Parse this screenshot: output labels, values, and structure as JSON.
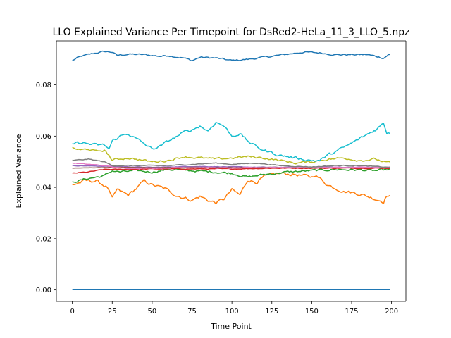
{
  "chart_data": {
    "type": "line",
    "title": "LLO Explained Variance Per Timepoint for DsRed2-HeLa_11_3_LLO_5.npz",
    "xlabel": "Time Point",
    "ylabel": "Explained Variance",
    "xlim": [
      -10,
      209
    ],
    "ylim": [
      -0.0045,
      0.0972
    ],
    "xticks": [
      0,
      25,
      50,
      75,
      100,
      125,
      150,
      175,
      200
    ],
    "yticks": [
      0.0,
      0.02,
      0.04,
      0.06,
      0.08
    ],
    "ytick_labels": [
      "0.00",
      "0.02",
      "0.04",
      "0.06",
      "0.08"
    ],
    "grid": false,
    "legend": "none",
    "n_points": 200,
    "series": [
      {
        "color": "#1f77b4",
        "keyframes": [
          [
            0,
            0.0895
          ],
          [
            3,
            0.0905
          ],
          [
            6,
            0.0912
          ],
          [
            10,
            0.0918
          ],
          [
            15,
            0.0925
          ],
          [
            20,
            0.093
          ],
          [
            25,
            0.0928
          ],
          [
            28,
            0.0915
          ],
          [
            35,
            0.092
          ],
          [
            45,
            0.0918
          ],
          [
            55,
            0.0912
          ],
          [
            60,
            0.0915
          ],
          [
            70,
            0.0905
          ],
          [
            75,
            0.0895
          ],
          [
            80,
            0.0908
          ],
          [
            90,
            0.0905
          ],
          [
            100,
            0.0895
          ],
          [
            110,
            0.09
          ],
          [
            125,
            0.0912
          ],
          [
            135,
            0.092
          ],
          [
            145,
            0.0928
          ],
          [
            155,
            0.0925
          ],
          [
            165,
            0.0918
          ],
          [
            175,
            0.0918
          ],
          [
            185,
            0.0918
          ],
          [
            190,
            0.0912
          ],
          [
            195,
            0.0905
          ],
          [
            198,
            0.0918
          ],
          [
            199,
            0.0918
          ]
        ],
        "noise": 0.0006
      },
      {
        "color": "#ff7f0e",
        "keyframes": [
          [
            0,
            0.041
          ],
          [
            8,
            0.0425
          ],
          [
            15,
            0.0425
          ],
          [
            22,
            0.04
          ],
          [
            25,
            0.0355
          ],
          [
            28,
            0.039
          ],
          [
            35,
            0.037
          ],
          [
            40,
            0.0395
          ],
          [
            45,
            0.0425
          ],
          [
            50,
            0.041
          ],
          [
            58,
            0.0395
          ],
          [
            65,
            0.037
          ],
          [
            75,
            0.035
          ],
          [
            80,
            0.0365
          ],
          [
            85,
            0.035
          ],
          [
            90,
            0.034
          ],
          [
            95,
            0.0355
          ],
          [
            100,
            0.039
          ],
          [
            105,
            0.037
          ],
          [
            110,
            0.043
          ],
          [
            115,
            0.042
          ],
          [
            120,
            0.044
          ],
          [
            130,
            0.0455
          ],
          [
            140,
            0.045
          ],
          [
            150,
            0.044
          ],
          [
            152,
            0.045
          ],
          [
            160,
            0.041
          ],
          [
            170,
            0.0385
          ],
          [
            180,
            0.0375
          ],
          [
            190,
            0.0355
          ],
          [
            195,
            0.0345
          ],
          [
            197,
            0.037
          ],
          [
            199,
            0.0365
          ]
        ],
        "noise": 0.0012
      },
      {
        "color": "#2ca02c",
        "keyframes": [
          [
            0,
            0.042
          ],
          [
            10,
            0.0435
          ],
          [
            20,
            0.0445
          ],
          [
            25,
            0.0465
          ],
          [
            30,
            0.046
          ],
          [
            40,
            0.0465
          ],
          [
            50,
            0.046
          ],
          [
            60,
            0.047
          ],
          [
            75,
            0.0465
          ],
          [
            90,
            0.046
          ],
          [
            100,
            0.0455
          ],
          [
            110,
            0.044
          ],
          [
            120,
            0.045
          ],
          [
            135,
            0.046
          ],
          [
            150,
            0.0465
          ],
          [
            165,
            0.047
          ],
          [
            180,
            0.0468
          ],
          [
            190,
            0.0465
          ],
          [
            199,
            0.047
          ]
        ],
        "noise": 0.0008
      },
      {
        "color": "#d62728",
        "keyframes": [
          [
            0,
            0.0455
          ],
          [
            10,
            0.046
          ],
          [
            20,
            0.047
          ],
          [
            30,
            0.047
          ],
          [
            50,
            0.0472
          ],
          [
            75,
            0.0472
          ],
          [
            100,
            0.0472
          ],
          [
            125,
            0.0475
          ],
          [
            150,
            0.0475
          ],
          [
            175,
            0.0475
          ],
          [
            199,
            0.0475
          ]
        ],
        "noise": 0.0003
      },
      {
        "color": "#9467bd",
        "keyframes": [
          [
            0,
            0.0485
          ],
          [
            25,
            0.0482
          ],
          [
            50,
            0.0478
          ],
          [
            75,
            0.0482
          ],
          [
            100,
            0.048
          ],
          [
            125,
            0.0478
          ],
          [
            150,
            0.048
          ],
          [
            175,
            0.0478
          ],
          [
            199,
            0.0478
          ]
        ],
        "noise": 0.0002
      },
      {
        "color": "#8c564b",
        "keyframes": [
          [
            0,
            0.0475
          ],
          [
            25,
            0.0478
          ],
          [
            50,
            0.0477
          ],
          [
            75,
            0.0478
          ],
          [
            100,
            0.0477
          ],
          [
            125,
            0.0478
          ],
          [
            150,
            0.0477
          ],
          [
            175,
            0.0477
          ],
          [
            199,
            0.0477
          ]
        ],
        "noise": 0.0001
      },
      {
        "color": "#e377c2",
        "keyframes": [
          [
            0,
            0.0495
          ],
          [
            10,
            0.049
          ],
          [
            20,
            0.0485
          ],
          [
            30,
            0.0475
          ],
          [
            50,
            0.0475
          ],
          [
            75,
            0.0478
          ],
          [
            100,
            0.0475
          ],
          [
            125,
            0.0478
          ],
          [
            150,
            0.0478
          ],
          [
            175,
            0.0478
          ],
          [
            199,
            0.0478
          ]
        ],
        "noise": 0.0003
      },
      {
        "color": "#7f7f7f",
        "keyframes": [
          [
            0,
            0.0505
          ],
          [
            10,
            0.051
          ],
          [
            20,
            0.05
          ],
          [
            25,
            0.0485
          ],
          [
            40,
            0.0485
          ],
          [
            60,
            0.0485
          ],
          [
            75,
            0.049
          ],
          [
            90,
            0.0495
          ],
          [
            100,
            0.049
          ],
          [
            115,
            0.0495
          ],
          [
            130,
            0.0485
          ],
          [
            150,
            0.048
          ],
          [
            165,
            0.0485
          ],
          [
            180,
            0.0485
          ],
          [
            199,
            0.0478
          ]
        ],
        "noise": 0.0003
      },
      {
        "color": "#bcbd22",
        "keyframes": [
          [
            0,
            0.0555
          ],
          [
            5,
            0.0545
          ],
          [
            10,
            0.055
          ],
          [
            15,
            0.054
          ],
          [
            20,
            0.0545
          ],
          [
            23,
            0.0525
          ],
          [
            25,
            0.0505
          ],
          [
            28,
            0.051
          ],
          [
            35,
            0.0515
          ],
          [
            40,
            0.051
          ],
          [
            50,
            0.05
          ],
          [
            60,
            0.0505
          ],
          [
            70,
            0.052
          ],
          [
            80,
            0.0515
          ],
          [
            90,
            0.051
          ],
          [
            100,
            0.0515
          ],
          [
            110,
            0.052
          ],
          [
            120,
            0.0515
          ],
          [
            130,
            0.0505
          ],
          [
            140,
            0.0495
          ],
          [
            150,
            0.05
          ],
          [
            160,
            0.051
          ],
          [
            170,
            0.0515
          ],
          [
            180,
            0.0505
          ],
          [
            190,
            0.051
          ],
          [
            195,
            0.05
          ],
          [
            199,
            0.0495
          ]
        ],
        "noise": 0.0008
      },
      {
        "color": "#17becf",
        "keyframes": [
          [
            0,
            0.057
          ],
          [
            5,
            0.0575
          ],
          [
            10,
            0.057
          ],
          [
            15,
            0.0565
          ],
          [
            20,
            0.0565
          ],
          [
            23,
            0.055
          ],
          [
            25,
            0.058
          ],
          [
            30,
            0.06
          ],
          [
            35,
            0.061
          ],
          [
            40,
            0.059
          ],
          [
            45,
            0.057
          ],
          [
            50,
            0.055
          ],
          [
            55,
            0.056
          ],
          [
            60,
            0.058
          ],
          [
            70,
            0.0615
          ],
          [
            75,
            0.0625
          ],
          [
            80,
            0.064
          ],
          [
            85,
            0.062
          ],
          [
            90,
            0.0655
          ],
          [
            95,
            0.064
          ],
          [
            100,
            0.06
          ],
          [
            105,
            0.061
          ],
          [
            110,
            0.058
          ],
          [
            115,
            0.056
          ],
          [
            120,
            0.0545
          ],
          [
            125,
            0.0535
          ],
          [
            130,
            0.0525
          ],
          [
            140,
            0.0515
          ],
          [
            150,
            0.0505
          ],
          [
            155,
            0.0505
          ],
          [
            160,
            0.0525
          ],
          [
            170,
            0.0555
          ],
          [
            180,
            0.059
          ],
          [
            190,
            0.0625
          ],
          [
            195,
            0.065
          ],
          [
            197,
            0.0615
          ],
          [
            199,
            0.0615
          ]
        ],
        "noise": 0.001
      },
      {
        "color": "#1f77b4",
        "keyframes": [
          [
            0,
            0.0001
          ],
          [
            199,
            0.0001
          ]
        ],
        "noise": 0.0
      }
    ]
  }
}
